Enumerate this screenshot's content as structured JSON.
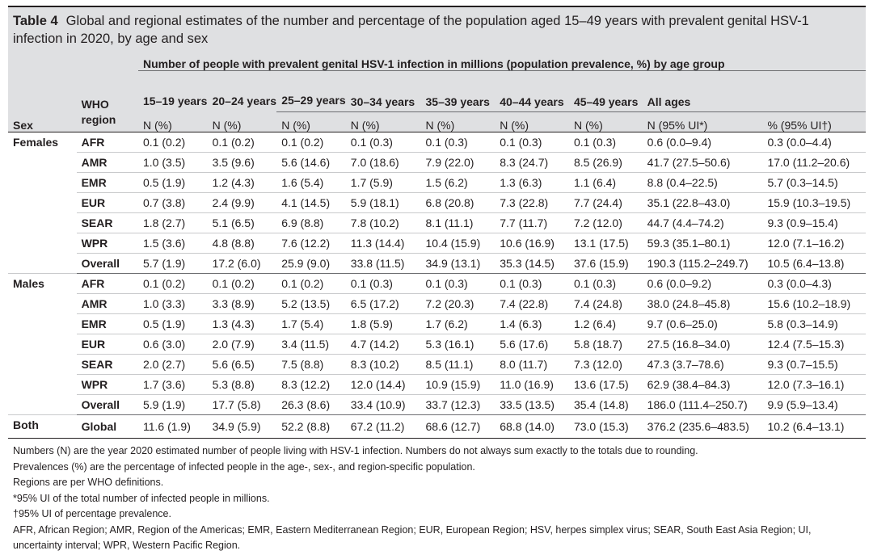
{
  "table": {
    "label": "Table 4",
    "title": "Global and regional estimates of the number and percentage of the population aged 15–49 years with prevalent genital HSV-1 infection in 2020, by age and sex"
  },
  "header": {
    "spanning": "Number of people with prevalent genital HSV-1 infection in millions (population prevalence, %) by age group",
    "sex": "Sex",
    "region": "WHO region",
    "age_groups": [
      "15–19 years",
      "20–24 years",
      "25–29 years",
      "30–34 years",
      "35–39 years",
      "40–44 years",
      "45–49 years",
      "All ages",
      ""
    ],
    "units": [
      "N (%)",
      "N (%)",
      "N (%)",
      "N (%)",
      "N (%)",
      "N (%)",
      "N (%)",
      "N (95% UI*)",
      "% (95% UI†)"
    ]
  },
  "groups": [
    {
      "sex": "Females",
      "rows": [
        {
          "region": "AFR",
          "cells": [
            "0.1 (0.2)",
            "0.1 (0.2)",
            "0.1 (0.2)",
            "0.1 (0.3)",
            "0.1 (0.3)",
            "0.1 (0.3)",
            "0.1 (0.3)",
            "0.6 (0.0–9.4)",
            "0.3 (0.0–4.4)"
          ]
        },
        {
          "region": "AMR",
          "cells": [
            "1.0 (3.5)",
            "3.5 (9.6)",
            "5.6 (14.6)",
            "7.0 (18.6)",
            "7.9 (22.0)",
            "8.3 (24.7)",
            "8.5 (26.9)",
            "41.7 (27.5–50.6)",
            "17.0 (11.2–20.6)"
          ]
        },
        {
          "region": "EMR",
          "cells": [
            "0.5 (1.9)",
            "1.2 (4.3)",
            "1.6 (5.4)",
            "1.7 (5.9)",
            "1.5 (6.2)",
            "1.3 (6.3)",
            "1.1 (6.4)",
            "8.8 (0.4–22.5)",
            "5.7 (0.3–14.5)"
          ]
        },
        {
          "region": "EUR",
          "cells": [
            "0.7 (3.8)",
            "2.4 (9.9)",
            "4.1 (14.5)",
            "5.9 (18.1)",
            "6.8 (20.8)",
            "7.3 (22.8)",
            "7.7 (24.4)",
            "35.1 (22.8–43.0)",
            "15.9 (10.3–19.5)"
          ]
        },
        {
          "region": "SEAR",
          "cells": [
            "1.8 (2.7)",
            "5.1 (6.5)",
            "6.9 (8.8)",
            "7.8 (10.2)",
            "8.1 (11.1)",
            "7.7 (11.7)",
            "7.2 (12.0)",
            "44.7 (4.4–74.2)",
            "9.3 (0.9–15.4)"
          ]
        },
        {
          "region": "WPR",
          "cells": [
            "1.5 (3.6)",
            "4.8 (8.8)",
            "7.6 (12.2)",
            "11.3 (14.4)",
            "10.4 (15.9)",
            "10.6 (16.9)",
            "13.1 (17.5)",
            "59.3 (35.1–80.1)",
            "12.0 (7.1–16.2)"
          ]
        },
        {
          "region": "Overall",
          "cells": [
            "5.7 (1.9)",
            "17.2 (6.0)",
            "25.9 (9.0)",
            "33.8 (11.5)",
            "34.9 (13.1)",
            "35.3 (14.5)",
            "37.6 (15.9)",
            "190.3 (115.2–249.7)",
            "10.5 (6.4–13.8)"
          ]
        }
      ]
    },
    {
      "sex": "Males",
      "rows": [
        {
          "region": "AFR",
          "cells": [
            "0.1 (0.2)",
            "0.1 (0.2)",
            "0.1 (0.2)",
            "0.1 (0.3)",
            "0.1 (0.3)",
            "0.1 (0.3)",
            "0.1 (0.3)",
            "0.6 (0.0–9.2)",
            "0.3 (0.0–4.3)"
          ]
        },
        {
          "region": "AMR",
          "cells": [
            "1.0 (3.3)",
            "3.3 (8.9)",
            "5.2 (13.5)",
            "6.5 (17.2)",
            "7.2 (20.3)",
            "7.4 (22.8)",
            "7.4 (24.8)",
            "38.0 (24.8–45.8)",
            "15.6 (10.2–18.9)"
          ]
        },
        {
          "region": "EMR",
          "cells": [
            "0.5 (1.9)",
            "1.3 (4.3)",
            "1.7 (5.4)",
            "1.8 (5.9)",
            "1.7 (6.2)",
            "1.4 (6.3)",
            "1.2 (6.4)",
            "9.7 (0.6–25.0)",
            "5.8 (0.3–14.9)"
          ]
        },
        {
          "region": "EUR",
          "cells": [
            "0.6 (3.0)",
            "2.0 (7.9)",
            "3.4 (11.5)",
            "4.7 (14.2)",
            "5.3 (16.1)",
            "5.6 (17.6)",
            "5.8 (18.7)",
            "27.5 (16.8–34.0)",
            "12.4 (7.5–15.3)"
          ]
        },
        {
          "region": "SEAR",
          "cells": [
            "2.0 (2.7)",
            "5.6 (6.5)",
            "7.5 (8.8)",
            "8.3 (10.2)",
            "8.5 (11.1)",
            "8.0 (11.7)",
            "7.3 (12.0)",
            "47.3 (3.7–78.6)",
            "9.3 (0.7–15.5)"
          ]
        },
        {
          "region": "WPR",
          "cells": [
            "1.7 (3.6)",
            "5.3 (8.8)",
            "8.3 (12.2)",
            "12.0 (14.4)",
            "10.9 (15.9)",
            "11.0 (16.9)",
            "13.6 (17.5)",
            "62.9 (38.4–84.3)",
            "12.0 (7.3–16.1)"
          ]
        },
        {
          "region": "Overall",
          "cells": [
            "5.9 (1.9)",
            "17.7 (5.8)",
            "26.3 (8.6)",
            "33.4 (10.9)",
            "33.7 (12.3)",
            "33.5 (13.5)",
            "35.4 (14.8)",
            "186.0 (111.4–250.7)",
            "9.9 (5.9–13.4)"
          ]
        }
      ]
    },
    {
      "sex": "Both",
      "rows": [
        {
          "region": "Global",
          "cells": [
            "11.6 (1.9)",
            "34.9 (5.9)",
            "52.2 (8.8)",
            "67.2 (11.2)",
            "68.6 (12.7)",
            "68.8 (14.0)",
            "73.0 (15.3)",
            "376.2 (235.6–483.5)",
            "10.2 (6.4–13.1)"
          ]
        }
      ]
    }
  ],
  "notes": [
    "Numbers (N) are the year 2020 estimated number of people living with HSV-1 infection. Numbers do not always sum exactly to the totals due to rounding.",
    "Prevalences (%) are the percentage of infected people in the age-, sex-, and region-specific population.",
    "Regions are per WHO definitions.",
    "*95% UI of the total number of infected people in millions.",
    "†95% UI of percentage prevalence.",
    "AFR, African Region; AMR, Region of the Americas; EMR, Eastern Mediterranean Region; EUR, European Region; HSV, herpes simplex virus; SEAR, South East Asia Region; UI, uncertainty interval; WPR, Western Pacific Region."
  ]
}
